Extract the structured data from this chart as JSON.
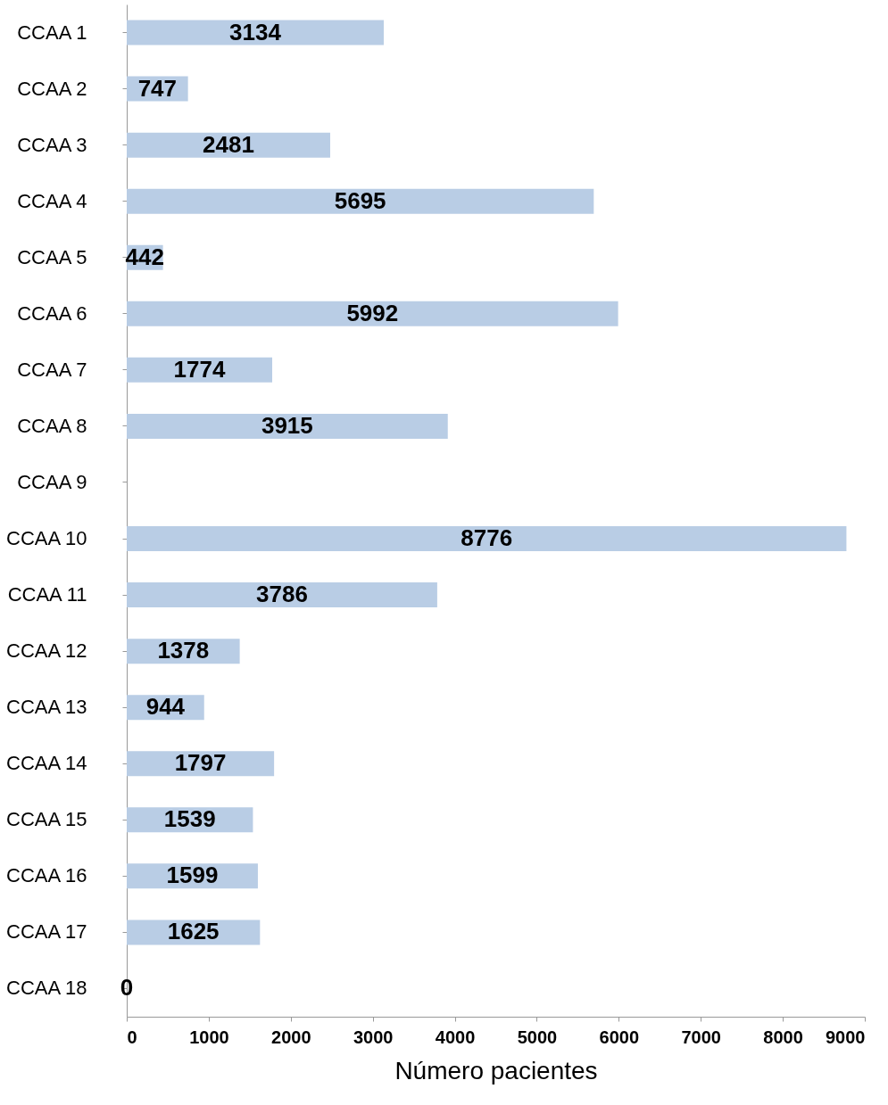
{
  "chart_data": {
    "type": "bar",
    "orientation": "horizontal",
    "xlabel": "Número pacientes",
    "categories": [
      "CCAA 1",
      "CCAA 2",
      "CCAA 3",
      "CCAA 4",
      "CCAA 5",
      "CCAA 6",
      "CCAA 7",
      "CCAA 8",
      "CCAA 9",
      "CCAA 10",
      "CCAA 11",
      "CCAA 12",
      "CCAA 13",
      "CCAA 14",
      "CCAA 15",
      "CCAA 16",
      "CCAA 17",
      "CCAA 18"
    ],
    "values": [
      3134,
      747,
      2481,
      5695,
      442,
      5992,
      1774,
      3915,
      null,
      8776,
      3786,
      1378,
      944,
      1797,
      1539,
      1599,
      1625,
      0
    ],
    "value_labels": [
      "3134",
      "747",
      "2481",
      "5695",
      "442",
      "5992",
      "1774",
      "3915",
      null,
      "8776",
      "3786",
      "1378",
      "944",
      "1797",
      "1539",
      "1599",
      "1625",
      "0"
    ],
    "color": "#b9cde5",
    "xlim": [
      0,
      9000
    ],
    "xticks": [
      0,
      1000,
      2000,
      3000,
      4000,
      5000,
      6000,
      7000,
      8000,
      9000
    ],
    "grid": false
  }
}
